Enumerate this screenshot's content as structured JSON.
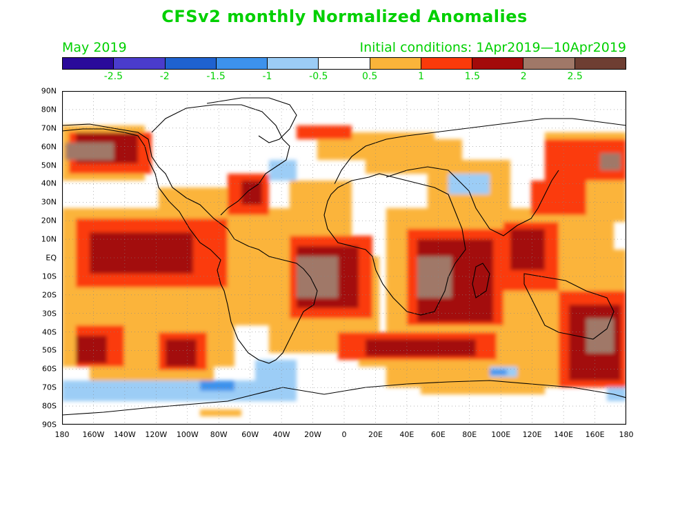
{
  "title": "CFSv2 monthly Normalized Anomalies",
  "month_label": "May 2019",
  "initial_conditions": "Initial conditions: 1Apr2019—10Apr2019",
  "colorbar": {
    "colors": [
      "#2a0a9a",
      "#4a3ccc",
      "#1f62d0",
      "#3d92ec",
      "#9ccdf6",
      "#ffffff",
      "#fbb43a",
      "#fb3a0a",
      "#a30a0a",
      "#a07868",
      "#6e3e32"
    ],
    "labels": [
      "-2.5",
      "-2",
      "-1.5",
      "-1",
      "-0.5",
      "0.5",
      "1",
      "1.5",
      "2",
      "2.5"
    ]
  },
  "latitude_labels": [
    "90N",
    "80N",
    "70N",
    "60N",
    "50N",
    "40N",
    "30N",
    "20N",
    "10N",
    "EQ",
    "10S",
    "20S",
    "30S",
    "40S",
    "50S",
    "60S",
    "70S",
    "80S",
    "90S"
  ],
  "longitude_labels": [
    "180",
    "160W",
    "140W",
    "120W",
    "100W",
    "80W",
    "60W",
    "40W",
    "20W",
    "0",
    "20E",
    "40E",
    "60E",
    "80E",
    "100E",
    "120E",
    "140E",
    "160E",
    "180"
  ]
}
